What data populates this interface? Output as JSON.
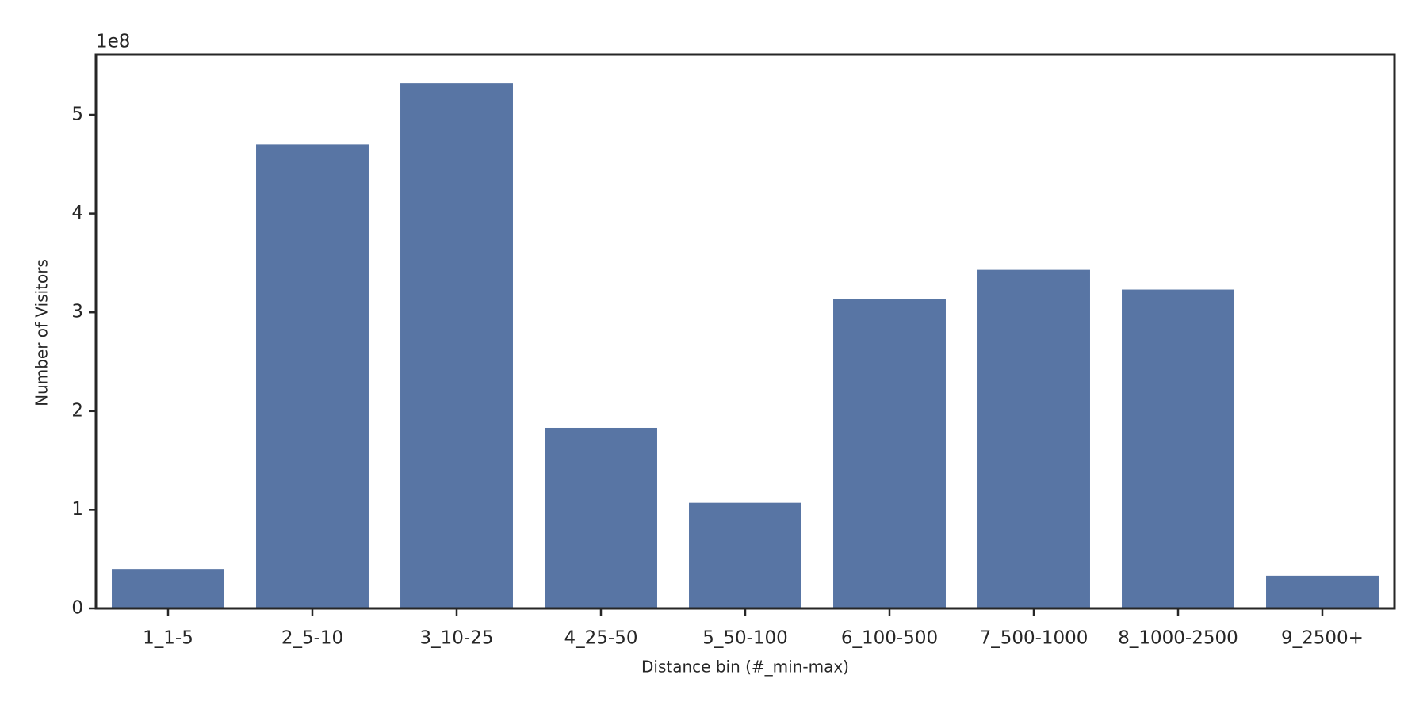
{
  "chart_data": {
    "type": "bar",
    "x_label": "Distance bin (#_min-max)",
    "y_label": "Number of Visitors",
    "y_offset_label": "1e8",
    "categories": [
      "1_1-5",
      "2_5-10",
      "3_10-25",
      "4_25-50",
      "5_50-100",
      "6_100-500",
      "7_500-1000",
      "8_1000-2500",
      "9_2500+"
    ],
    "values": [
      0.4,
      4.7,
      5.32,
      1.83,
      1.07,
      3.13,
      3.43,
      3.23,
      0.33
    ],
    "color": "#5875a4",
    "ylim": [
      0,
      5.61
    ],
    "yticks": [
      0,
      1,
      2,
      3,
      4,
      5
    ]
  }
}
